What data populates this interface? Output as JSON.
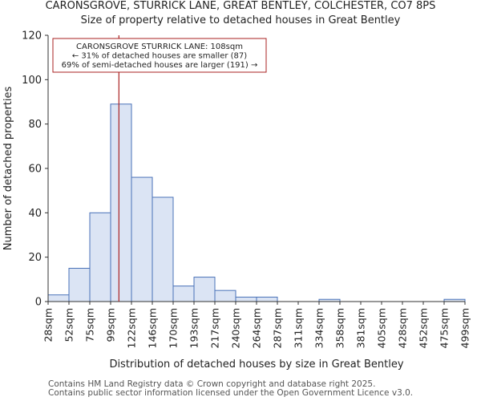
{
  "header": {
    "title_line1": "CARONSGROVE, STURRICK LANE, GREAT BENTLEY, COLCHESTER, CO7 8PS",
    "title_line2": "Size of property relative to detached houses in Great Bentley"
  },
  "footer": {
    "line1": "Contains HM Land Registry data © Crown copyright and database right 2025.",
    "line2": "Contains public sector information licensed under the Open Government Licence v3.0."
  },
  "chart_data": {
    "type": "bar",
    "title": "CARONSGROVE, STURRICK LANE, GREAT BENTLEY, COLCHESTER, CO7 8PS",
    "subtitle": "Size of property relative to detached houses in Great Bentley",
    "xlabel": "Distribution of detached houses by size in Great Bentley",
    "ylabel": "Number of detached properties",
    "ylim": [
      0,
      120
    ],
    "yticks": [
      0,
      20,
      40,
      60,
      80,
      100,
      120
    ],
    "bin_edges": [
      28,
      52,
      75,
      99,
      122,
      146,
      170,
      193,
      217,
      240,
      264,
      287,
      311,
      334,
      358,
      381,
      405,
      428,
      452,
      475,
      499
    ],
    "tick_labels": [
      "28sqm",
      "52sqm",
      "75sqm",
      "99sqm",
      "122sqm",
      "146sqm",
      "170sqm",
      "193sqm",
      "217sqm",
      "240sqm",
      "264sqm",
      "287sqm",
      "311sqm",
      "334sqm",
      "358sqm",
      "381sqm",
      "405sqm",
      "428sqm",
      "452sqm",
      "475sqm",
      "499sqm"
    ],
    "values": [
      3,
      15,
      40,
      89,
      56,
      47,
      7,
      11,
      5,
      2,
      2,
      0,
      0,
      1,
      0,
      0,
      0,
      0,
      0,
      1
    ],
    "marker_value": 108,
    "annotation": {
      "line1": "CARONSGROVE STURRICK LANE: 108sqm",
      "line2": "← 31% of detached houses are smaller (87)",
      "line3": "69% of semi-detached houses are larger (191) →"
    },
    "colors": {
      "bar_fill": "#dbe4f4",
      "bar_stroke": "#4a72b8",
      "marker": "#aa2222",
      "axis": "#333333",
      "text": "#222222"
    }
  }
}
